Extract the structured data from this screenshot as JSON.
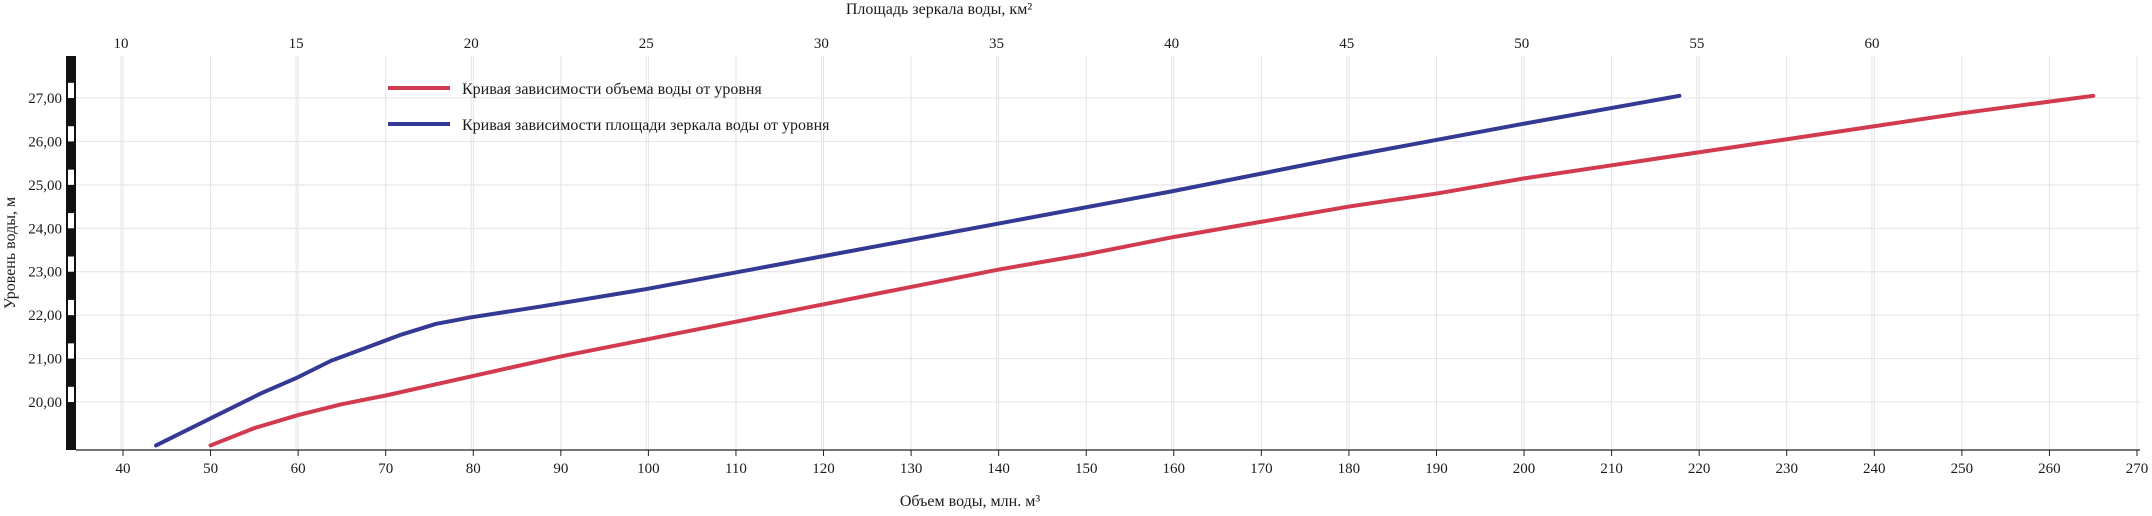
{
  "chart_data": {
    "type": "line",
    "title": "",
    "xlabel": "Объем воды, млн. м³",
    "x2label": "Площадь зеркала воды, км²",
    "ylabel": "Уровень воды, м",
    "xlim": [
      35,
      270
    ],
    "x2lim": [
      10,
      68
    ],
    "ylim": [
      19,
      28
    ],
    "x_ticks": [
      40,
      50,
      60,
      70,
      80,
      90,
      100,
      110,
      120,
      130,
      140,
      150,
      160,
      170,
      180,
      190,
      200,
      210,
      220,
      230,
      240,
      250,
      260,
      270
    ],
    "x2_ticks": [
      10,
      15,
      20,
      25,
      30,
      35,
      40,
      45,
      50,
      55,
      60
    ],
    "y_ticks": [
      20,
      21,
      22,
      23,
      24,
      25,
      26,
      27
    ],
    "y_tick_labels": [
      "20,00",
      "21,00",
      "22,00",
      "23,00",
      "24,00",
      "25,00",
      "26,00",
      "27,00"
    ],
    "grid": true,
    "legend": "top-left",
    "series": [
      {
        "name": "Кривая зависимости объема воды от уровня",
        "color": "#d23a4f",
        "axis": "bottom",
        "points": [
          [
            50,
            19
          ],
          [
            55,
            19.4
          ],
          [
            60,
            19.7
          ],
          [
            65,
            19.95
          ],
          [
            70,
            20.15
          ],
          [
            80,
            20.6
          ],
          [
            90,
            21.05
          ],
          [
            100,
            21.45
          ],
          [
            110,
            21.85
          ],
          [
            120,
            22.25
          ],
          [
            130,
            22.65
          ],
          [
            140,
            23.05
          ],
          [
            150,
            23.4
          ],
          [
            160,
            23.8
          ],
          [
            170,
            24.15
          ],
          [
            180,
            24.5
          ],
          [
            190,
            24.8
          ],
          [
            200,
            25.15
          ],
          [
            210,
            25.45
          ],
          [
            220,
            25.75
          ],
          [
            230,
            26.05
          ],
          [
            240,
            26.35
          ],
          [
            250,
            26.65
          ],
          [
            265,
            27.05
          ]
        ]
      },
      {
        "name": "Кривая зависимости площади зеркала воды от уровня",
        "color": "#343a94",
        "axis": "top",
        "points": [
          [
            11,
            19
          ],
          [
            12,
            19.4
          ],
          [
            13,
            19.8
          ],
          [
            14,
            20.2
          ],
          [
            15,
            20.55
          ],
          [
            16,
            20.95
          ],
          [
            17,
            21.25
          ],
          [
            18,
            21.55
          ],
          [
            19,
            21.8
          ],
          [
            20,
            21.95
          ],
          [
            22,
            22.2
          ],
          [
            25,
            22.6
          ],
          [
            28,
            23.05
          ],
          [
            30,
            23.35
          ],
          [
            35,
            24.1
          ],
          [
            40,
            24.85
          ],
          [
            45,
            25.65
          ],
          [
            50,
            26.4
          ],
          [
            54.5,
            27.05
          ]
        ]
      }
    ]
  }
}
